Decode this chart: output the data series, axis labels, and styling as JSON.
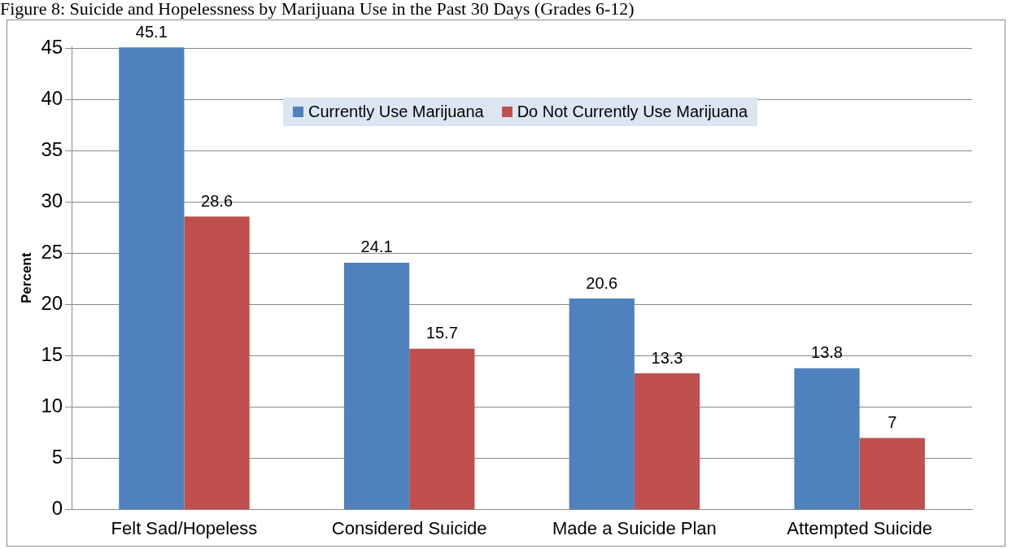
{
  "chart_data": {
    "type": "bar",
    "title": "Figure 8: Suicide and Hopelessness by Marijuana Use in the Past 30 Days (Grades 6-12)",
    "ylabel": "Percent",
    "categories": [
      "Felt Sad/Hopeless",
      "Considered Suicide",
      "Made a Suicide Plan",
      "Attempted Suicide"
    ],
    "series": [
      {
        "name": "Currently Use Marijuana",
        "color": "#4f81bd",
        "values": [
          45.1,
          24.1,
          20.6,
          13.8
        ]
      },
      {
        "name": "Do Not Currently Use Marijuana",
        "color": "#c0504d",
        "values": [
          28.6,
          15.7,
          13.3,
          7
        ]
      }
    ],
    "ylim": [
      0,
      45.2
    ],
    "yticks": [
      0,
      5,
      10,
      15,
      20,
      25,
      30,
      35,
      40,
      45
    ],
    "grid": "y",
    "legend": "top",
    "data_labels": true
  }
}
